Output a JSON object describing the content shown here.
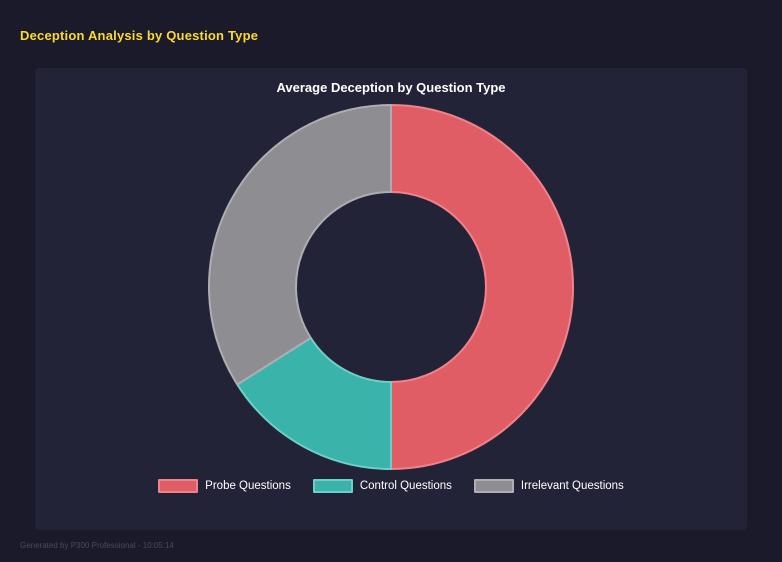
{
  "page": {
    "title": "Deception Analysis by Question Type",
    "footer": "Generated by P300 Professional - 10:05:14"
  },
  "chart_data": {
    "type": "pie",
    "subtype": "donut",
    "title": "Average Deception by Question Type",
    "categories": [
      "Probe Questions",
      "Control Questions",
      "Irrelevant Questions"
    ],
    "values": [
      50,
      16,
      34
    ],
    "colors": [
      "#e15d66",
      "#3ab3aa",
      "#8d8d92"
    ],
    "border_colors": [
      "#ef828a",
      "#6ecfc8",
      "#adadb2"
    ],
    "legend_position": "bottom",
    "donut_hole_ratio": 0.52,
    "start_angle_deg": 0,
    "direction": "clockwise"
  }
}
